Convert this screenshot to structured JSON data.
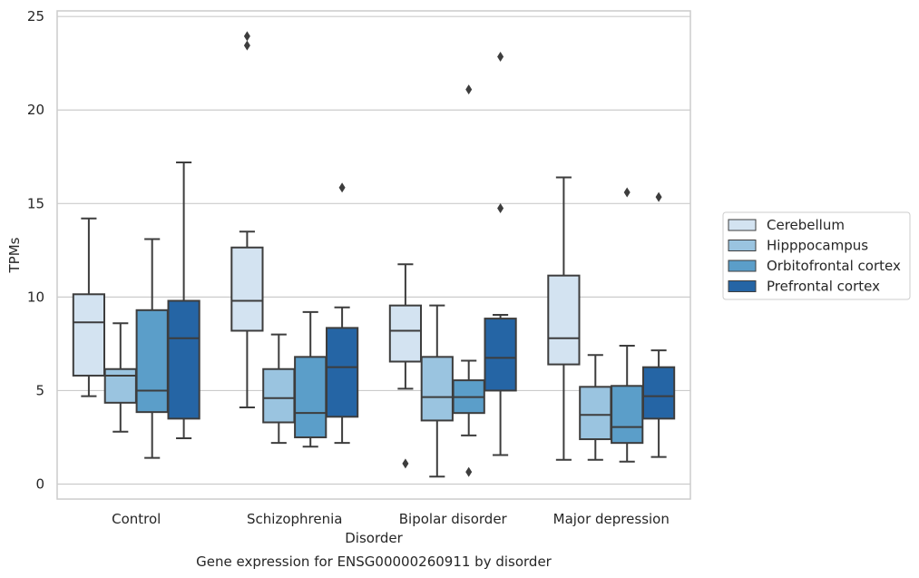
{
  "chart_data": {
    "type": "box",
    "title": "",
    "caption": "Gene expression for ENSG00000260911 by disorder",
    "xlabel": "Disorder",
    "ylabel": "TPMs",
    "ylim": [
      -0.8,
      25.3
    ],
    "yticks": [
      0,
      5,
      10,
      15,
      20,
      25
    ],
    "grid": "horizontal",
    "legend_position": "right",
    "categories": [
      "Control",
      "Schizophrenia",
      "Bipolar disorder",
      "Major depression"
    ],
    "series": [
      {
        "name": "Cerebellum",
        "color": "#d3e3f1",
        "boxes": [
          {
            "whislo": 4.7,
            "q1": 5.8,
            "med": 8.65,
            "q3": 10.15,
            "whishi": 14.2,
            "fliers": []
          },
          {
            "whislo": 4.1,
            "q1": 8.2,
            "med": 9.8,
            "q3": 12.65,
            "whishi": 13.5,
            "fliers": [
              23.45,
              23.95
            ]
          },
          {
            "whislo": 5.1,
            "q1": 6.55,
            "med": 8.2,
            "q3": 9.55,
            "whishi": 11.75,
            "fliers": [
              1.1
            ]
          },
          {
            "whislo": 1.3,
            "q1": 6.4,
            "med": 7.8,
            "q3": 11.15,
            "whishi": 16.4,
            "fliers": []
          }
        ]
      },
      {
        "name": "Hipppocampus",
        "color": "#9ac4e0",
        "boxes": [
          {
            "whislo": 2.8,
            "q1": 4.35,
            "med": 5.8,
            "q3": 6.15,
            "whishi": 8.6,
            "fliers": []
          },
          {
            "whislo": 2.2,
            "q1": 3.3,
            "med": 4.6,
            "q3": 6.15,
            "whishi": 8.0,
            "fliers": []
          },
          {
            "whislo": 0.4,
            "q1": 3.4,
            "med": 4.65,
            "q3": 6.8,
            "whishi": 9.55,
            "fliers": []
          },
          {
            "whislo": 1.3,
            "q1": 2.4,
            "med": 3.7,
            "q3": 5.2,
            "whishi": 6.9,
            "fliers": []
          }
        ]
      },
      {
        "name": "Orbitofrontal cortex",
        "color": "#5b9ec9",
        "boxes": [
          {
            "whislo": 1.4,
            "q1": 3.85,
            "med": 5.0,
            "q3": 9.3,
            "whishi": 13.1,
            "fliers": []
          },
          {
            "whislo": 2.0,
            "q1": 2.5,
            "med": 3.8,
            "q3": 6.8,
            "whishi": 9.2,
            "fliers": []
          },
          {
            "whislo": 2.6,
            "q1": 3.8,
            "med": 4.65,
            "q3": 5.55,
            "whishi": 6.6,
            "fliers": [
              21.1,
              0.65
            ]
          },
          {
            "whislo": 1.2,
            "q1": 2.2,
            "med": 3.05,
            "q3": 5.25,
            "whishi": 7.4,
            "fliers": [
              15.6
            ]
          }
        ]
      },
      {
        "name": "Prefrontal cortex",
        "color": "#2565a5",
        "boxes": [
          {
            "whislo": 2.45,
            "q1": 3.5,
            "med": 7.8,
            "q3": 9.8,
            "whishi": 17.2,
            "fliers": []
          },
          {
            "whislo": 2.2,
            "q1": 3.6,
            "med": 6.25,
            "q3": 8.35,
            "whishi": 9.45,
            "fliers": [
              15.85
            ]
          },
          {
            "whislo": 1.55,
            "q1": 5.0,
            "med": 6.75,
            "q3": 8.85,
            "whishi": 9.05,
            "fliers": [
              22.85,
              14.75
            ]
          },
          {
            "whislo": 1.45,
            "q1": 3.5,
            "med": 4.7,
            "q3": 6.25,
            "whishi": 7.15,
            "fliers": [
              15.35
            ]
          }
        ]
      }
    ]
  }
}
